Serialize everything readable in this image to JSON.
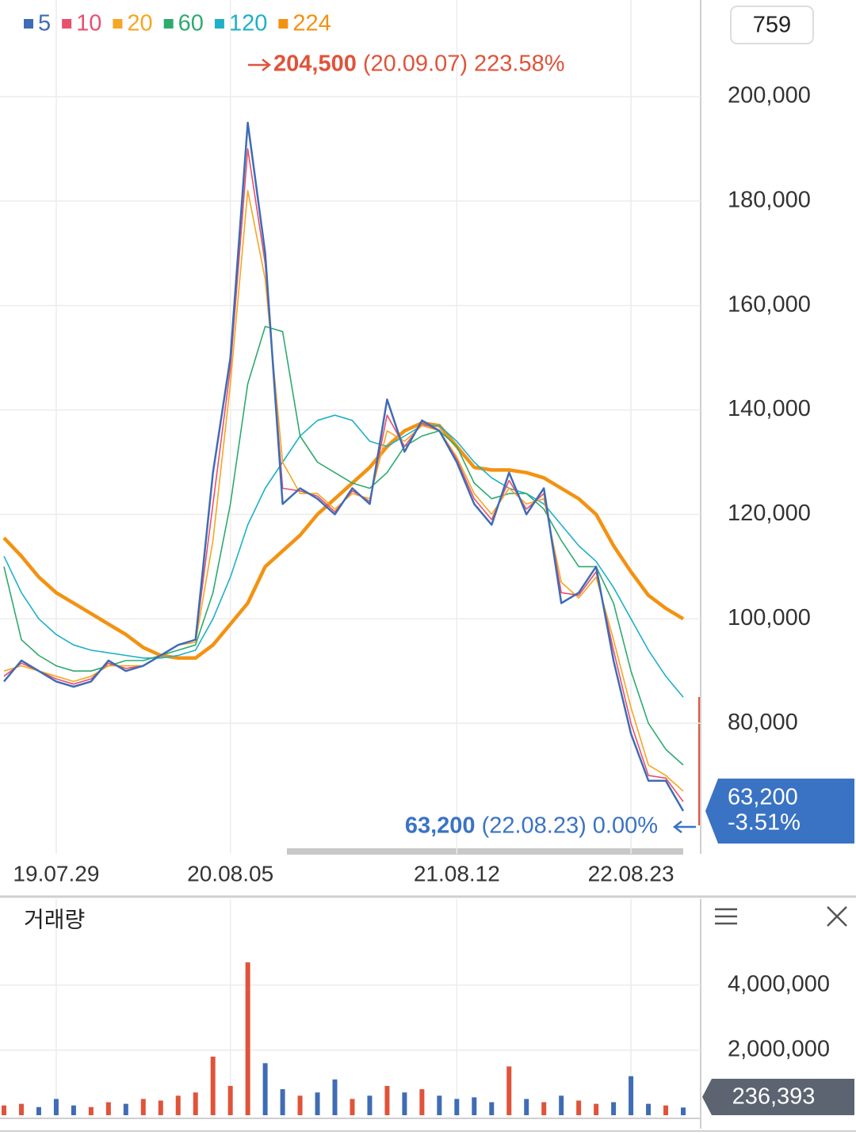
{
  "top_badge": "759",
  "chart_data": [
    {
      "type": "line",
      "categories": [
        null,
        null,
        null,
        "19.07.29",
        null,
        null,
        null,
        null,
        null,
        null,
        null,
        null,
        null,
        "20.08.05",
        null,
        null,
        null,
        null,
        null,
        null,
        null,
        null,
        null,
        null,
        null,
        null,
        "21.08.12",
        null,
        null,
        null,
        null,
        null,
        null,
        null,
        null,
        null,
        "22.08.23",
        null,
        null,
        null
      ],
      "series": [
        {
          "name": "5",
          "color": "#3f6cb5",
          "values": [
            88000,
            92000,
            90000,
            88000,
            87000,
            88000,
            92000,
            90000,
            91000,
            93000,
            95000,
            96000,
            128000,
            150000,
            195000,
            170000,
            122000,
            125000,
            123000,
            120000,
            125000,
            122000,
            142000,
            132000,
            138000,
            136000,
            130000,
            122000,
            118000,
            128000,
            120000,
            125000,
            103000,
            105000,
            110000,
            92000,
            78000,
            69000,
            69000,
            63200
          ]
        },
        {
          "name": "10",
          "color": "#e8506e",
          "values": [
            89000,
            91500,
            90000,
            88500,
            87500,
            88500,
            91500,
            90500,
            91000,
            93000,
            95000,
            96000,
            122000,
            148000,
            190000,
            168000,
            125000,
            124500,
            123500,
            120500,
            124500,
            122500,
            139000,
            133000,
            137500,
            136000,
            130500,
            123000,
            119000,
            126500,
            121000,
            124000,
            105000,
            104500,
            109000,
            94000,
            80000,
            70000,
            69500,
            65000
          ]
        },
        {
          "name": "20",
          "color": "#f5a623",
          "values": [
            90000,
            91000,
            90000,
            89000,
            88000,
            89000,
            91000,
            91000,
            91000,
            93000,
            95000,
            95500,
            115000,
            145000,
            182000,
            165000,
            130000,
            124000,
            124000,
            121000,
            124000,
            123000,
            136000,
            134000,
            137000,
            136000,
            131000,
            124000,
            120000,
            125000,
            122000,
            123000,
            107000,
            104000,
            108000,
            96000,
            83000,
            72000,
            70000,
            67000
          ]
        },
        {
          "name": "60",
          "color": "#2eaa6e",
          "values": [
            110000,
            96000,
            93000,
            91000,
            90000,
            90000,
            91000,
            92000,
            92000,
            93000,
            94000,
            95000,
            105000,
            122000,
            145000,
            156000,
            155000,
            135000,
            130000,
            128000,
            126000,
            125000,
            128000,
            133000,
            135000,
            136000,
            133000,
            126000,
            123000,
            124000,
            124000,
            121000,
            115000,
            110000,
            110000,
            103000,
            90000,
            80000,
            75000,
            72000
          ]
        },
        {
          "name": "120",
          "color": "#1fb0c8",
          "values": [
            112000,
            105000,
            100000,
            97000,
            95000,
            94000,
            93500,
            93000,
            92500,
            92500,
            93000,
            94000,
            100000,
            108000,
            118000,
            125000,
            130000,
            135000,
            138000,
            139000,
            138000,
            134000,
            133000,
            135000,
            137000,
            137000,
            134000,
            130000,
            127000,
            125000,
            124000,
            122000,
            118000,
            114000,
            111000,
            106000,
            100000,
            94000,
            89000,
            85000
          ]
        },
        {
          "name": "224",
          "color": "#f39212",
          "values": [
            115500,
            112000,
            108000,
            105000,
            103000,
            101000,
            99000,
            97000,
            94500,
            93000,
            92500,
            92500,
            95000,
            99000,
            103000,
            110000,
            113000,
            116000,
            120000,
            123000,
            126000,
            129000,
            133000,
            136000,
            137500,
            137000,
            133000,
            129000,
            128500,
            128500,
            128000,
            127000,
            125000,
            123000,
            120000,
            114000,
            109000,
            104500,
            102000,
            100000
          ]
        }
      ],
      "ylim": [
        55000,
        218500
      ],
      "yticks": [
        {
          "value": 80000,
          "label": "80,000"
        },
        {
          "value": 100000,
          "label": "100,000"
        },
        {
          "value": 120000,
          "label": "120,000"
        },
        {
          "value": 140000,
          "label": "140,000"
        },
        {
          "value": 160000,
          "label": "160,000"
        },
        {
          "value": 180000,
          "label": "180,000"
        },
        {
          "value": 200000,
          "label": "200,000"
        }
      ],
      "grid": true,
      "high": {
        "value_label": "204,500",
        "date": "(20.09.07)",
        "change": "223.58%",
        "color": "#e0533a"
      },
      "last": {
        "value_label": "63,200",
        "date": "(22.08.23)",
        "change": "0.00%",
        "color": "#3a73c4"
      },
      "price_box": {
        "value_label": "63,200",
        "change": "-3.51%",
        "color": "#3a73c4"
      }
    },
    {
      "type": "bar",
      "title": "거래량",
      "values": [
        300000,
        350000,
        250000,
        500000,
        300000,
        250000,
        400000,
        350000,
        500000,
        450000,
        600000,
        700000,
        1800000,
        900000,
        4700000,
        1600000,
        800000,
        600000,
        700000,
        1100000,
        500000,
        600000,
        900000,
        700000,
        800000,
        600000,
        500000,
        550000,
        400000,
        1500000,
        500000,
        400000,
        600000,
        450000,
        350000,
        400000,
        1200000,
        350000,
        300000,
        236393
      ],
      "up_color": "#e0533a",
      "down_color": "#3f6cb5",
      "ylim": [
        0,
        6650000
      ],
      "yticks": [
        {
          "value": 2000000,
          "label": "2,000,000"
        },
        {
          "value": 4000000,
          "label": "4,000,000"
        }
      ],
      "grid": true,
      "last_label": "236,393",
      "last_box_color": "#5b6470"
    }
  ]
}
